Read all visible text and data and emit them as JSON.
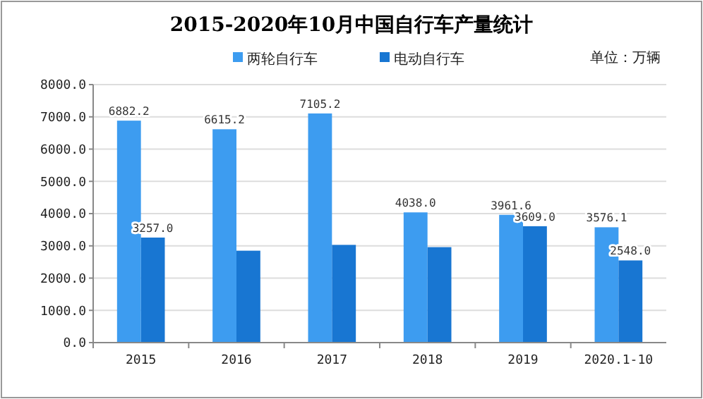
{
  "chart_data": {
    "type": "bar",
    "title": "2015-2020年10月中国自行车产量统计",
    "categories": [
      "2015",
      "2016",
      "2017",
      "2018",
      "2019",
      "2020.1-10"
    ],
    "series": [
      {
        "name": "两轮自行车",
        "color": "#3d9cf0",
        "values": [
          6882.2,
          6615.2,
          7105.2,
          4038.0,
          3961.6,
          3576.1
        ],
        "value_labels": [
          "6882.2",
          "6615.2",
          "7105.2",
          "4038.0",
          "3961.6",
          "3576.1"
        ]
      },
      {
        "name": "电动自行车",
        "color": "#1876d2",
        "values": [
          3257.0,
          2850,
          3030,
          2960,
          3609.0,
          2548.0
        ],
        "value_labels": [
          "3257.0",
          null,
          null,
          null,
          "3609.0",
          "2548.0"
        ]
      }
    ],
    "ylim": [
      0,
      8000
    ],
    "yticks": [
      {
        "value": 0,
        "label": "0.0"
      },
      {
        "value": 1000,
        "label": "1000.0"
      },
      {
        "value": 2000,
        "label": "2000.0"
      },
      {
        "value": 3000,
        "label": "3000.0"
      },
      {
        "value": 4000,
        "label": "4000.0"
      },
      {
        "value": 5000,
        "label": "5000.0"
      },
      {
        "value": 6000,
        "label": "6000.0"
      },
      {
        "value": 7000,
        "label": "7000.0"
      },
      {
        "value": 8000,
        "label": "8000.0"
      }
    ],
    "grid": "y",
    "legend": "top",
    "annotations": [
      "单位：万辆"
    ]
  }
}
